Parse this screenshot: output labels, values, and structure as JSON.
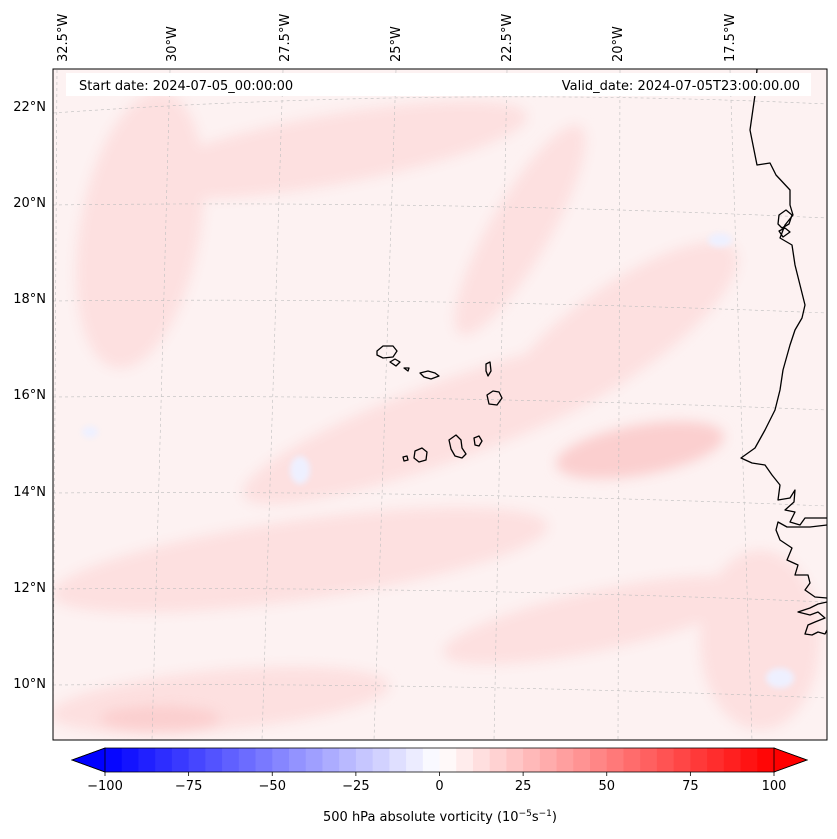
{
  "header": {
    "start_date": "Start date: 2024-07-05_00:00:00",
    "valid_date": "Valid_date: 2024-07-05T23:00:00.00"
  },
  "axes": {
    "longitude_labels": [
      "32.5°W",
      "30°W",
      "27.5°W",
      "25°W",
      "22.5°W",
      "20°W",
      "17.5°W"
    ],
    "latitude_labels": [
      "22°N",
      "20°N",
      "18°N",
      "16°N",
      "14°N",
      "12°N",
      "10°N"
    ]
  },
  "colorbar": {
    "min": -100,
    "max": 100,
    "step": 5,
    "tick_labels": [
      "−100",
      "−75",
      "−50",
      "−25",
      "0",
      "25",
      "50",
      "75",
      "100"
    ],
    "label_main": "500 hPa absolute vorticity (10",
    "label_exp1": "−5",
    "label_mid": "s",
    "label_exp2": "−1",
    "label_end": ")",
    "color_negative": "#0000ff",
    "color_zero": "#ffffff",
    "color_positive": "#ff0000"
  },
  "map": {
    "region": "Cape Verde Islands and West African coast",
    "coastline_color": "#000000",
    "grid_color": "#b8b8b8"
  }
}
